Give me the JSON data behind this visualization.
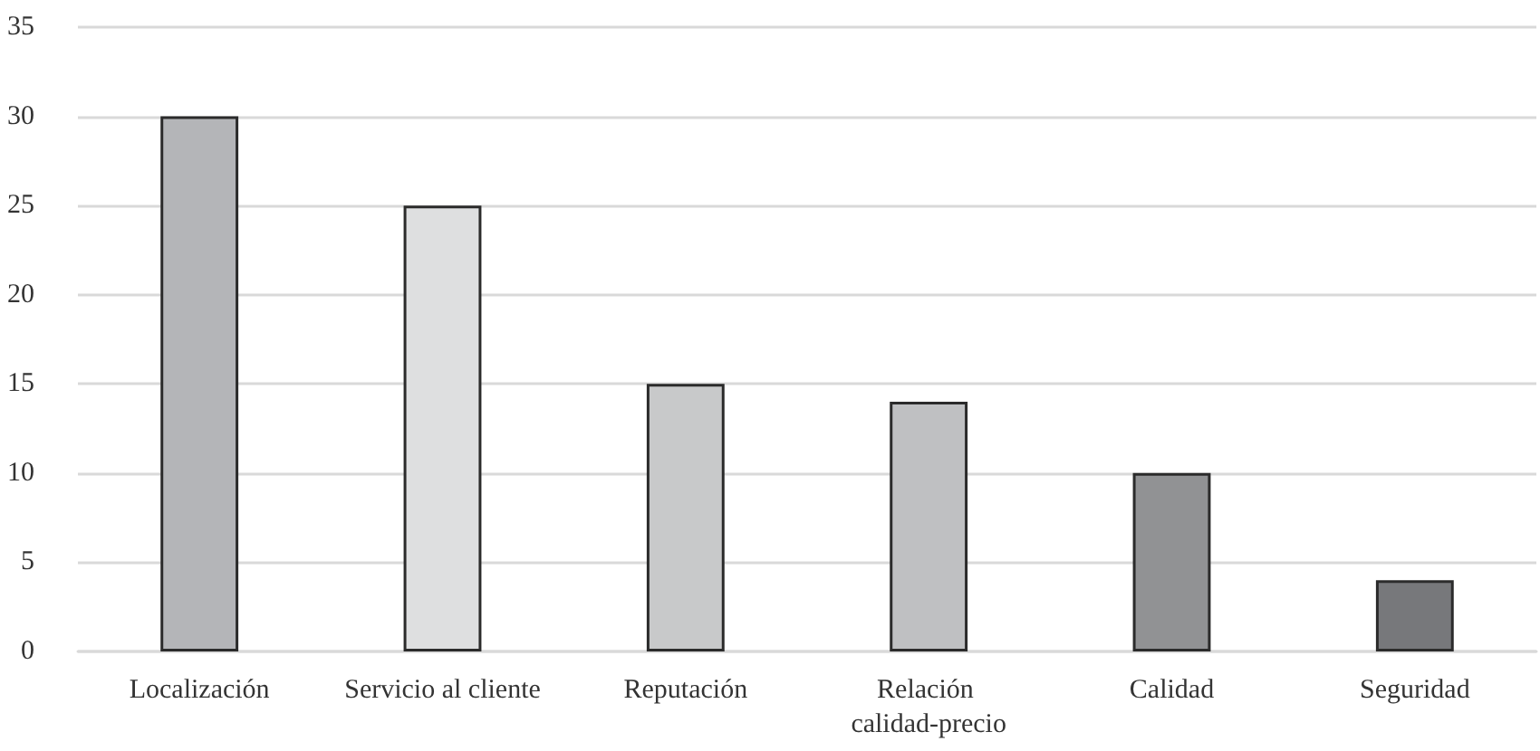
{
  "chart_data": {
    "type": "bar",
    "categories": [
      "Localización",
      "Servicio al cliente",
      "Reputación",
      "Relación calidad-precio",
      "Calidad",
      "Seguridad"
    ],
    "values": [
      30,
      25,
      15,
      14,
      10,
      4
    ],
    "colors": [
      "#b4b5b8",
      "#dedfe0",
      "#c8c9ca",
      "#bfc0c2",
      "#919294",
      "#77787b"
    ],
    "ylim": [
      0,
      35
    ],
    "yticks": [
      0,
      5,
      10,
      15,
      20,
      25,
      30,
      35
    ],
    "grid": "y"
  }
}
